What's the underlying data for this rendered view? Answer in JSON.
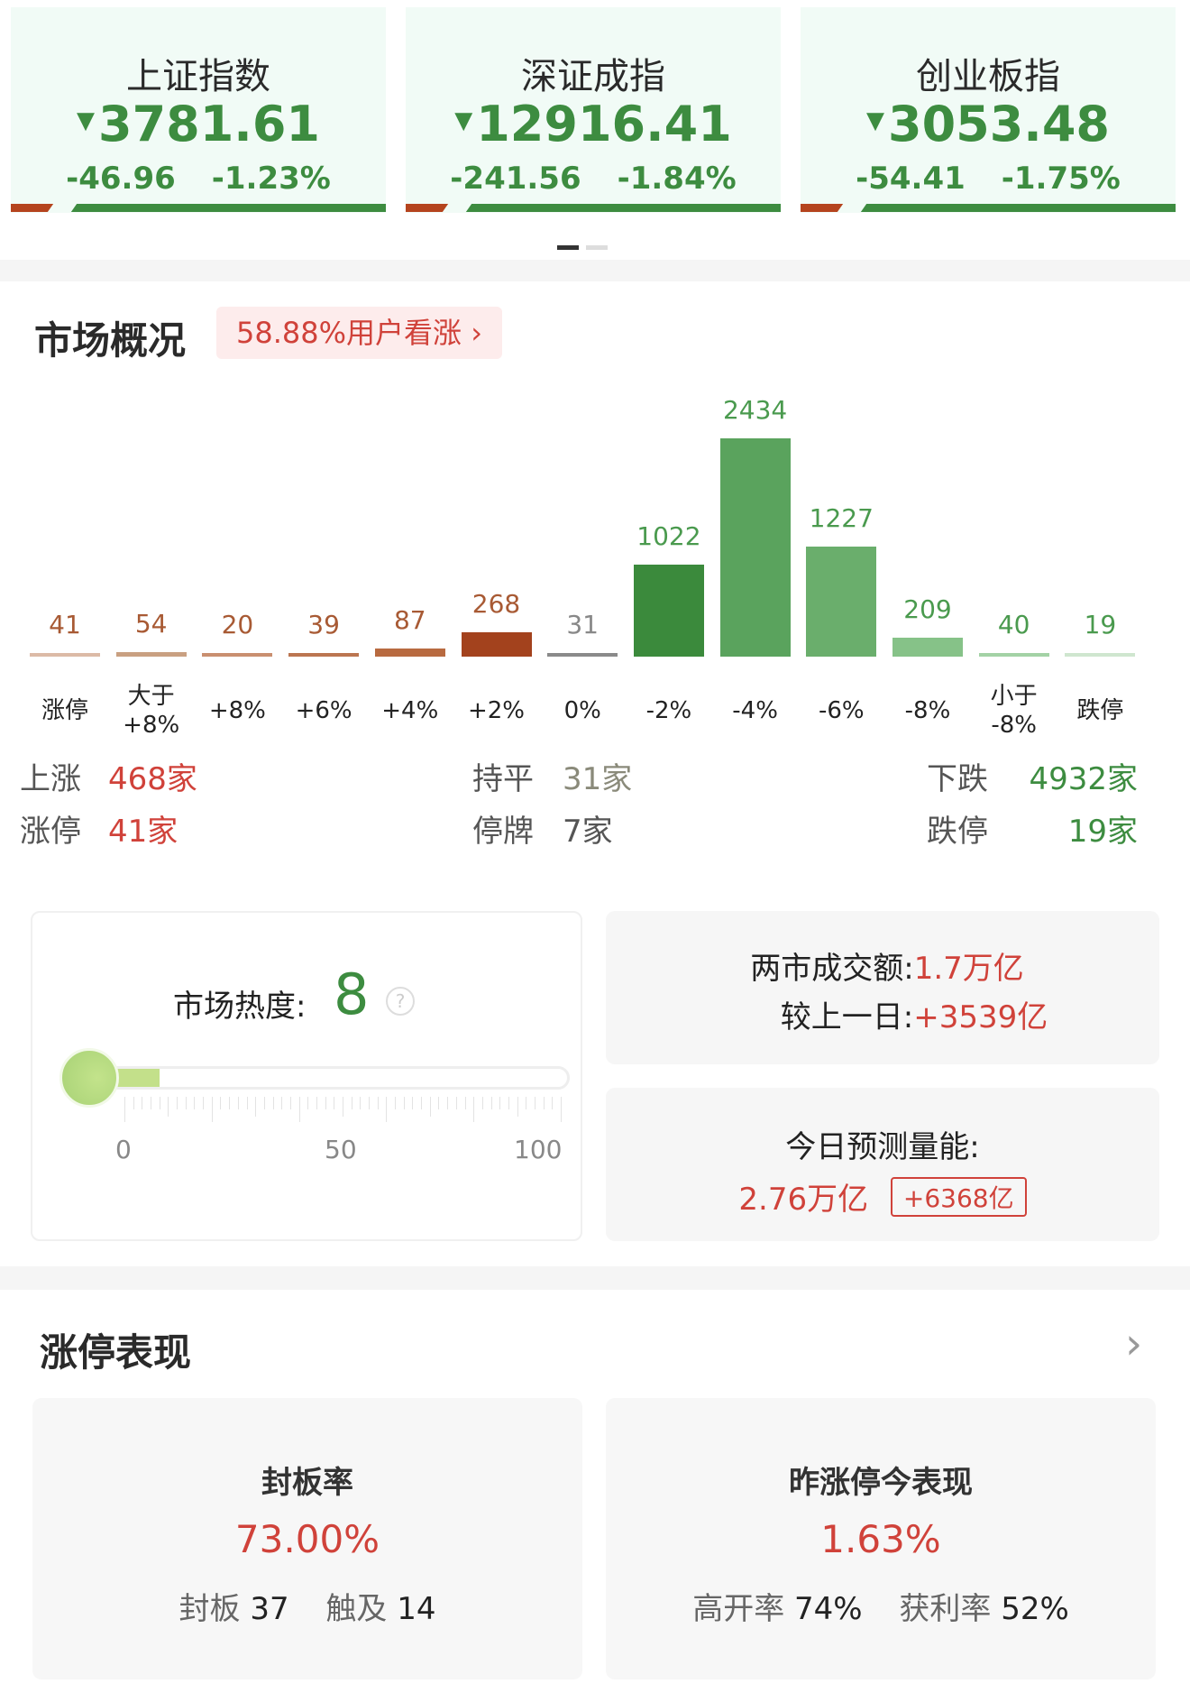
{
  "indices": [
    {
      "name": "上证指数",
      "price": "3781.61",
      "change": "-46.96",
      "pct": "-1.23%",
      "direction": "down",
      "up_fraction": 0.12
    },
    {
      "name": "深证成指",
      "price": "12916.41",
      "change": "-241.56",
      "pct": "-1.84%",
      "direction": "down",
      "up_fraction": 0.12
    },
    {
      "name": "创业板指",
      "price": "3053.48",
      "change": "-54.41",
      "pct": "-1.75%",
      "direction": "down",
      "up_fraction": 0.12
    }
  ],
  "carousel": {
    "pages": 2,
    "active": 0
  },
  "market": {
    "title": "市场概况",
    "sentiment": "58.88%用户看涨",
    "summary": {
      "up_label": "上涨",
      "up_value": "468家",
      "limit_up_label": "涨停",
      "limit_up_value": "41家",
      "flat_label": "持平",
      "flat_value": "31家",
      "suspended_label": "停牌",
      "suspended_value": "7家",
      "down_label": "下跌",
      "down_value": "4932家",
      "limit_down_label": "跌停",
      "limit_down_value": "19家"
    }
  },
  "chart_data": {
    "type": "bar",
    "categories": [
      "涨停",
      "大于\n+8%",
      "+8%",
      "+6%",
      "+4%",
      "+2%",
      "0%",
      "-2%",
      "-4%",
      "-6%",
      "-8%",
      "小于\n-8%",
      "跌停"
    ],
    "values": [
      41,
      54,
      20,
      39,
      87,
      268,
      31,
      1022,
      2434,
      1227,
      209,
      40,
      19
    ],
    "colors": [
      "#dcbaa6",
      "#c9a081",
      "#c98f70",
      "#bb7550",
      "#b86a40",
      "#a3421d",
      "#8a8a8a",
      "#3b8a3c",
      "#5aa35d",
      "#6aae6c",
      "#86c288",
      "#a3d2a5",
      "#cfe6cf"
    ],
    "label_colors": [
      "#a85a34",
      "#a85a34",
      "#a85a34",
      "#a85a34",
      "#a85a34",
      "#a85a34",
      "#888888",
      "#4a9a4e",
      "#4a9a4e",
      "#4a9a4e",
      "#4a9a4e",
      "#4a9a4e",
      "#4a9a4e"
    ]
  },
  "heat": {
    "label": "市场热度:",
    "value": "8",
    "level": 8,
    "ticks": [
      "0",
      "50",
      "100"
    ],
    "help_icon": "question-circle-icon"
  },
  "turnover": {
    "label": "两市成交额:",
    "value": "1.7万亿",
    "compare_label": "较上一日:",
    "compare_value": "+3539亿"
  },
  "forecast": {
    "label": "今日预测量能:",
    "value": "2.76万亿",
    "delta": "+6368亿"
  },
  "limit_up": {
    "title": "涨停表现",
    "seal": {
      "title": "封板率",
      "value": "73.00%",
      "sealed_label": "封板",
      "sealed_value": "37",
      "touched_label": "触及",
      "touched_value": "14"
    },
    "yesterday": {
      "title": "昨涨停今表现",
      "value": "1.63%",
      "open_label": "高开率",
      "open_value": "74%",
      "profit_label": "获利率",
      "profit_value": "52%"
    }
  },
  "colors": {
    "up": "#d0423a",
    "down": "#3d8c40"
  }
}
